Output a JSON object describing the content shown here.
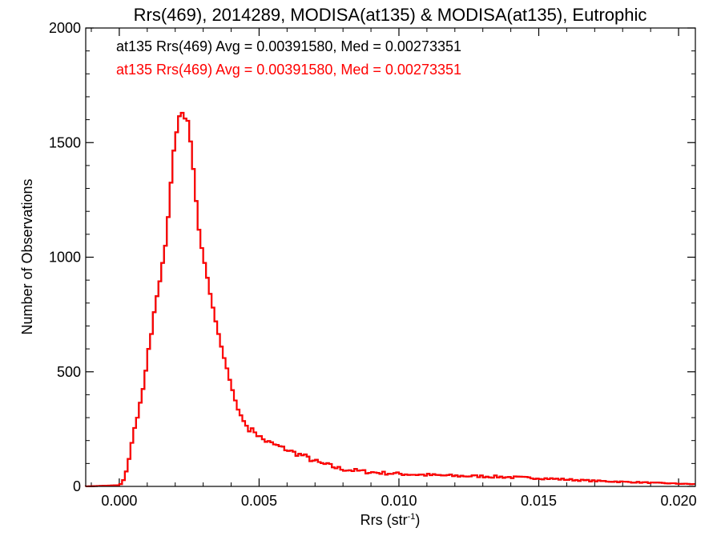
{
  "chart_data": {
    "type": "step",
    "title": "Rrs(469), 2014289, MODISA(at135) & MODISA(at135), Eutrophic",
    "xlabel": "Rrs (str",
    "xlabel_sup": "-1",
    "xlabel_close": ")",
    "ylabel": "Number of Observations",
    "xlim": [
      -0.0012,
      0.0206
    ],
    "ylim": [
      0,
      2000
    ],
    "xticks": [
      0.0,
      0.005,
      0.01,
      0.015,
      0.02
    ],
    "xtick_labels": [
      "0.000",
      "0.005",
      "0.010",
      "0.015",
      "0.020"
    ],
    "yticks": [
      0,
      500,
      1000,
      1500,
      2000
    ],
    "ytick_labels": [
      "0",
      "500",
      "1000",
      "1500",
      "2000"
    ],
    "x_minor_step": 0.001,
    "y_minor_step": 100,
    "bin_width": 0.0001,
    "colors": {
      "axes": "#000000",
      "series_black": "#000000",
      "series_red": "#ff0000"
    },
    "annotations": [
      {
        "text": "at135 Rrs(469) Avg = 0.00391580, Med = 0.00273351",
        "color": "#000000"
      },
      {
        "text": "at135 Rrs(469) Avg = 0.00391580, Med = 0.00273351",
        "color": "#ff0000"
      }
    ],
    "series": [
      {
        "color": "#000000",
        "points": [
          [
            -0.0012,
            0
          ],
          [
            0.0,
            5
          ],
          [
            0.0001,
            15
          ],
          [
            0.0002,
            40
          ],
          [
            0.0003,
            90
          ],
          [
            0.0004,
            150
          ],
          [
            0.0005,
            230
          ],
          [
            0.0006,
            280
          ],
          [
            0.0007,
            320
          ],
          [
            0.0008,
            410
          ],
          [
            0.0009,
            440
          ],
          [
            0.001,
            570
          ],
          [
            0.0011,
            630
          ],
          [
            0.0012,
            700
          ],
          [
            0.0013,
            820
          ],
          [
            0.0014,
            840
          ],
          [
            0.0015,
            950
          ],
          [
            0.0016,
            1000
          ],
          [
            0.0017,
            1100
          ],
          [
            0.0018,
            1250
          ],
          [
            0.0019,
            1400
          ],
          [
            0.002,
            1530
          ],
          [
            0.0021,
            1560
          ],
          [
            0.0022,
            1670
          ],
          [
            0.0023,
            1590
          ],
          [
            0.0024,
            1620
          ],
          [
            0.0025,
            1570
          ],
          [
            0.0026,
            1440
          ],
          [
            0.0027,
            1330
          ],
          [
            0.0028,
            1160
          ],
          [
            0.0029,
            1080
          ],
          [
            0.003,
            1000
          ],
          [
            0.0031,
            950
          ],
          [
            0.0032,
            870
          ],
          [
            0.0033,
            810
          ],
          [
            0.0034,
            750
          ],
          [
            0.0035,
            690
          ],
          [
            0.0036,
            640
          ],
          [
            0.0037,
            580
          ],
          [
            0.0038,
            540
          ],
          [
            0.0039,
            490
          ],
          [
            0.004,
            440
          ],
          [
            0.0041,
            400
          ],
          [
            0.0042,
            350
          ],
          [
            0.0043,
            320
          ],
          [
            0.0044,
            300
          ],
          [
            0.0045,
            270
          ],
          [
            0.0046,
            260
          ],
          [
            0.0047,
            240
          ],
          [
            0.0048,
            250
          ],
          [
            0.0049,
            230
          ],
          [
            0.005,
            220
          ],
          [
            0.0052,
            200
          ],
          [
            0.0054,
            190
          ],
          [
            0.0056,
            180
          ],
          [
            0.0058,
            170
          ],
          [
            0.006,
            160
          ],
          [
            0.0062,
            150
          ],
          [
            0.0064,
            140
          ],
          [
            0.0066,
            135
          ],
          [
            0.0068,
            120
          ],
          [
            0.007,
            110
          ],
          [
            0.0072,
            100
          ],
          [
            0.0074,
            95
          ],
          [
            0.0076,
            88
          ],
          [
            0.0078,
            80
          ],
          [
            0.008,
            75
          ],
          [
            0.0085,
            68
          ],
          [
            0.009,
            62
          ],
          [
            0.0095,
            58
          ],
          [
            0.01,
            55
          ],
          [
            0.0105,
            52
          ],
          [
            0.011,
            50
          ],
          [
            0.0115,
            48
          ],
          [
            0.012,
            46
          ],
          [
            0.0125,
            45
          ],
          [
            0.013,
            44
          ],
          [
            0.0135,
            42
          ],
          [
            0.014,
            40
          ],
          [
            0.0145,
            38
          ],
          [
            0.015,
            36
          ],
          [
            0.0155,
            33
          ],
          [
            0.016,
            30
          ],
          [
            0.0165,
            27
          ],
          [
            0.017,
            24
          ],
          [
            0.0175,
            22
          ],
          [
            0.018,
            20
          ],
          [
            0.0185,
            18
          ],
          [
            0.019,
            16
          ],
          [
            0.0195,
            14
          ],
          [
            0.02,
            12
          ],
          [
            0.0205,
            10
          ]
        ]
      },
      {
        "color": "#ff0000",
        "points": [
          [
            -0.0012,
            0
          ],
          [
            0.0,
            5
          ],
          [
            0.0001,
            15
          ],
          [
            0.0002,
            40
          ],
          [
            0.0003,
            90
          ],
          [
            0.0004,
            150
          ],
          [
            0.0005,
            230
          ],
          [
            0.0006,
            280
          ],
          [
            0.0007,
            320
          ],
          [
            0.0008,
            410
          ],
          [
            0.0009,
            440
          ],
          [
            0.001,
            570
          ],
          [
            0.0011,
            630
          ],
          [
            0.0012,
            700
          ],
          [
            0.0013,
            820
          ],
          [
            0.0014,
            840
          ],
          [
            0.0015,
            950
          ],
          [
            0.0016,
            1000
          ],
          [
            0.0017,
            1100
          ],
          [
            0.0018,
            1250
          ],
          [
            0.0019,
            1400
          ],
          [
            0.002,
            1530
          ],
          [
            0.0021,
            1560
          ],
          [
            0.0022,
            1670
          ],
          [
            0.0023,
            1590
          ],
          [
            0.0024,
            1620
          ],
          [
            0.0025,
            1570
          ],
          [
            0.0026,
            1440
          ],
          [
            0.0027,
            1330
          ],
          [
            0.0028,
            1160
          ],
          [
            0.0029,
            1080
          ],
          [
            0.003,
            1000
          ],
          [
            0.0031,
            950
          ],
          [
            0.0032,
            870
          ],
          [
            0.0033,
            810
          ],
          [
            0.0034,
            750
          ],
          [
            0.0035,
            690
          ],
          [
            0.0036,
            640
          ],
          [
            0.0037,
            580
          ],
          [
            0.0038,
            540
          ],
          [
            0.0039,
            490
          ],
          [
            0.004,
            440
          ],
          [
            0.0041,
            400
          ],
          [
            0.0042,
            350
          ],
          [
            0.0043,
            320
          ],
          [
            0.0044,
            300
          ],
          [
            0.0045,
            270
          ],
          [
            0.0046,
            260
          ],
          [
            0.0047,
            240
          ],
          [
            0.0048,
            250
          ],
          [
            0.0049,
            230
          ],
          [
            0.005,
            220
          ],
          [
            0.0052,
            200
          ],
          [
            0.0054,
            190
          ],
          [
            0.0056,
            180
          ],
          [
            0.0058,
            170
          ],
          [
            0.006,
            160
          ],
          [
            0.0062,
            150
          ],
          [
            0.0064,
            140
          ],
          [
            0.0066,
            135
          ],
          [
            0.0068,
            120
          ],
          [
            0.007,
            110
          ],
          [
            0.0072,
            100
          ],
          [
            0.0074,
            95
          ],
          [
            0.0076,
            88
          ],
          [
            0.0078,
            80
          ],
          [
            0.008,
            75
          ],
          [
            0.0085,
            68
          ],
          [
            0.009,
            62
          ],
          [
            0.0095,
            58
          ],
          [
            0.01,
            55
          ],
          [
            0.0105,
            52
          ],
          [
            0.011,
            50
          ],
          [
            0.0115,
            48
          ],
          [
            0.012,
            46
          ],
          [
            0.0125,
            45
          ],
          [
            0.013,
            44
          ],
          [
            0.0135,
            42
          ],
          [
            0.014,
            40
          ],
          [
            0.0145,
            38
          ],
          [
            0.015,
            36
          ],
          [
            0.0155,
            33
          ],
          [
            0.016,
            30
          ],
          [
            0.0165,
            27
          ],
          [
            0.017,
            24
          ],
          [
            0.0175,
            22
          ],
          [
            0.018,
            20
          ],
          [
            0.0185,
            18
          ],
          [
            0.019,
            16
          ],
          [
            0.0195,
            14
          ],
          [
            0.02,
            12
          ],
          [
            0.0205,
            10
          ]
        ]
      }
    ]
  }
}
